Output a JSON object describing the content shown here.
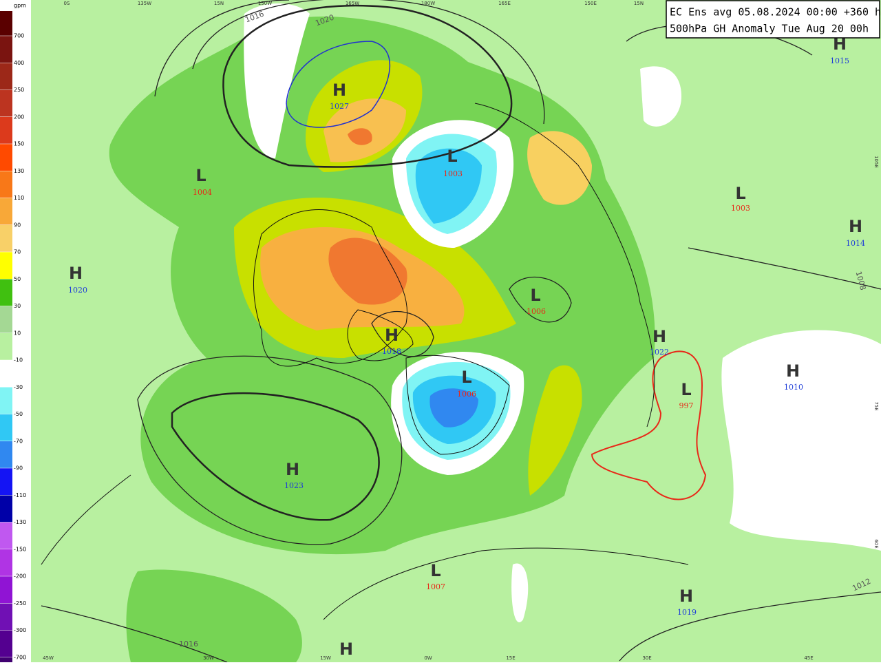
{
  "title": [
    "EC Ens avg 05.08.2024 00:00 +360 h",
    "500hPa GH Anomaly Tue Aug 20 00h"
  ],
  "legend": {
    "unit": "gpm",
    "levels": [
      700,
      400,
      250,
      200,
      150,
      130,
      110,
      90,
      70,
      50,
      30,
      10,
      -10,
      -30,
      -50,
      -70,
      -90,
      -110,
      -130,
      -150,
      -200,
      -250,
      -300,
      -700
    ],
    "colors": [
      "#5a0000",
      "#7a1410",
      "#9c2818",
      "#bc3420",
      "#dc3a1c",
      "#ff4a00",
      "#f87818",
      "#f8a838",
      "#f8d068",
      "#ffff00",
      "#40c010",
      "#a4d894",
      "#b8f0a0",
      "#ffffff",
      "#80f4f4",
      "#30c8f4",
      "#3088f0",
      "#1414f4",
      "#0000a8",
      "#c058f0",
      "#b034e4",
      "#9014d4",
      "#7010b4",
      "#540090",
      "#400070"
    ]
  },
  "systems": [
    {
      "type": "H",
      "pressure": 1027
    },
    {
      "type": "L",
      "pressure": 1004
    },
    {
      "type": "L",
      "pressure": 1003
    },
    {
      "type": "L",
      "pressure": 1003
    },
    {
      "type": "H",
      "pressure": 1015
    },
    {
      "type": "H",
      "pressure": 1014
    },
    {
      "type": "H",
      "pressure": 1020
    },
    {
      "type": "L",
      "pressure": 1006
    },
    {
      "type": "H",
      "pressure": 1018
    },
    {
      "type": "H",
      "pressure": 1022
    },
    {
      "type": "H",
      "pressure": 1010
    },
    {
      "type": "L",
      "pressure": 1006
    },
    {
      "type": "L",
      "pressure": 997
    },
    {
      "type": "H",
      "pressure": 1023
    },
    {
      "type": "L",
      "pressure": 1007
    },
    {
      "type": "H",
      "pressure": 1019
    },
    {
      "type": "H"
    }
  ],
  "isobar_labels": [
    1016,
    1020,
    1008,
    1012,
    1016
  ],
  "grid_labels": {
    "top": [
      "0S",
      "135W",
      "15N",
      "150W",
      "165W",
      "180W",
      "165E",
      "150E",
      "15N"
    ],
    "right": [
      "105E",
      "75E",
      "60E"
    ],
    "bottom": [
      "45W",
      "30W",
      "15W",
      "0W",
      "15E",
      "30E",
      "45E"
    ]
  }
}
